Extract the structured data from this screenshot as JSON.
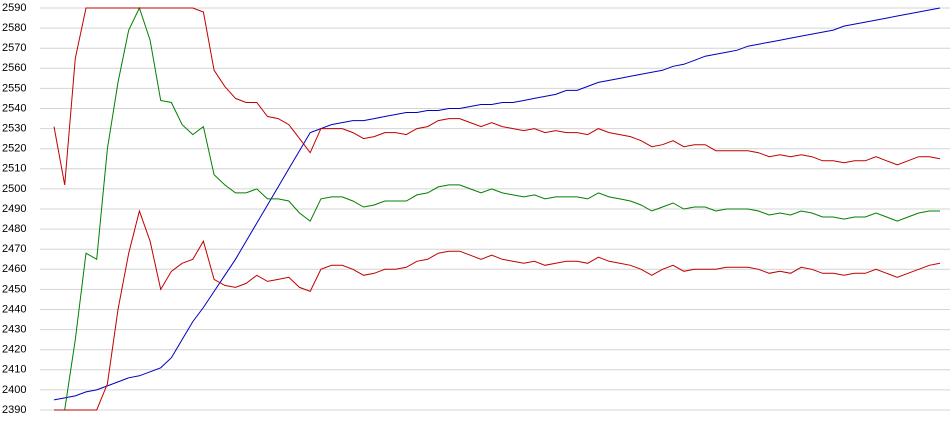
{
  "chart_data": {
    "type": "line",
    "ylim": [
      2390,
      2590
    ],
    "yticks": [
      2390,
      2400,
      2410,
      2420,
      2430,
      2440,
      2450,
      2460,
      2470,
      2480,
      2490,
      2500,
      2510,
      2520,
      2530,
      2540,
      2550,
      2560,
      2570,
      2580,
      2590
    ],
    "grid": true,
    "series": [
      {
        "color": "#0000c0",
        "values": [
          2395,
          2396,
          2397,
          2399,
          2400,
          2402,
          2404,
          2406,
          2407,
          2409,
          2411,
          2416,
          2425,
          2434,
          2441,
          2449,
          2457,
          2465,
          2474,
          2483,
          2492,
          2501,
          2510,
          2519,
          2528,
          2530,
          2532,
          2533,
          2534,
          2534,
          2535,
          2536,
          2537,
          2538,
          2538,
          2539,
          2539,
          2540,
          2540,
          2541,
          2542,
          2542,
          2543,
          2543,
          2544,
          2545,
          2546,
          2547,
          2549,
          2549,
          2551,
          2553,
          2554,
          2555,
          2556,
          2557,
          2558,
          2559,
          2561,
          2562,
          2564,
          2566,
          2567,
          2568,
          2569,
          2571,
          2572,
          2573,
          2574,
          2575,
          2576,
          2577,
          2578,
          2579,
          2581,
          2582,
          2583,
          2584,
          2585,
          2586,
          2587,
          2588,
          2589,
          2590
        ]
      },
      {
        "color": "#008000",
        "values": [
          2390,
          2390,
          2425,
          2468,
          2465,
          2520,
          2553,
          2579,
          2590,
          2574,
          2544,
          2543,
          2532,
          2527,
          2531,
          2507,
          2502,
          2498,
          2498,
          2500,
          2495,
          2495,
          2494,
          2488,
          2484,
          2495,
          2496,
          2496,
          2494,
          2491,
          2492,
          2494,
          2494,
          2494,
          2497,
          2498,
          2501,
          2502,
          2502,
          2500,
          2498,
          2500,
          2498,
          2497,
          2496,
          2497,
          2495,
          2496,
          2496,
          2496,
          2495,
          2498,
          2496,
          2495,
          2494,
          2492,
          2489,
          2491,
          2493,
          2490,
          2491,
          2491,
          2489,
          2490,
          2490,
          2490,
          2489,
          2487,
          2488,
          2487,
          2489,
          2488,
          2486,
          2486,
          2485,
          2486,
          2486,
          2488,
          2486,
          2484,
          2486,
          2488,
          2489,
          2489
        ]
      },
      {
        "color": "#c00000",
        "values": [
          2531,
          2502,
          2565,
          2590,
          2590,
          2590,
          2590,
          2590,
          2590,
          2590,
          2590,
          2590,
          2590,
          2590,
          2588,
          2559,
          2551,
          2545,
          2543,
          2543,
          2536,
          2535,
          2532,
          2525,
          2518,
          2530,
          2530,
          2530,
          2528,
          2525,
          2526,
          2528,
          2528,
          2527,
          2530,
          2531,
          2534,
          2535,
          2535,
          2533,
          2531,
          2533,
          2531,
          2530,
          2529,
          2530,
          2528,
          2529,
          2528,
          2528,
          2527,
          2530,
          2528,
          2527,
          2526,
          2524,
          2521,
          2522,
          2524,
          2521,
          2522,
          2522,
          2519,
          2519,
          2519,
          2519,
          2518,
          2516,
          2517,
          2516,
          2517,
          2516,
          2514,
          2514,
          2513,
          2514,
          2514,
          2516,
          2514,
          2512,
          2514,
          2516,
          2516,
          2515
        ]
      },
      {
        "color": "#c00000",
        "values": [
          2390,
          2390,
          2390,
          2390,
          2390,
          2403,
          2440,
          2468,
          2489,
          2474,
          2450,
          2459,
          2463,
          2465,
          2474,
          2455,
          2452,
          2451,
          2453,
          2457,
          2454,
          2455,
          2456,
          2451,
          2449,
          2460,
          2462,
          2462,
          2460,
          2457,
          2458,
          2460,
          2460,
          2461,
          2464,
          2465,
          2468,
          2469,
          2469,
          2467,
          2465,
          2467,
          2465,
          2464,
          2463,
          2464,
          2462,
          2463,
          2464,
          2464,
          2463,
          2466,
          2464,
          2463,
          2462,
          2460,
          2457,
          2460,
          2462,
          2459,
          2460,
          2460,
          2460,
          2461,
          2461,
          2461,
          2460,
          2458,
          2459,
          2458,
          2461,
          2460,
          2458,
          2458,
          2457,
          2458,
          2458,
          2460,
          2458,
          2456,
          2458,
          2460,
          2462,
          2463
        ]
      }
    ]
  }
}
